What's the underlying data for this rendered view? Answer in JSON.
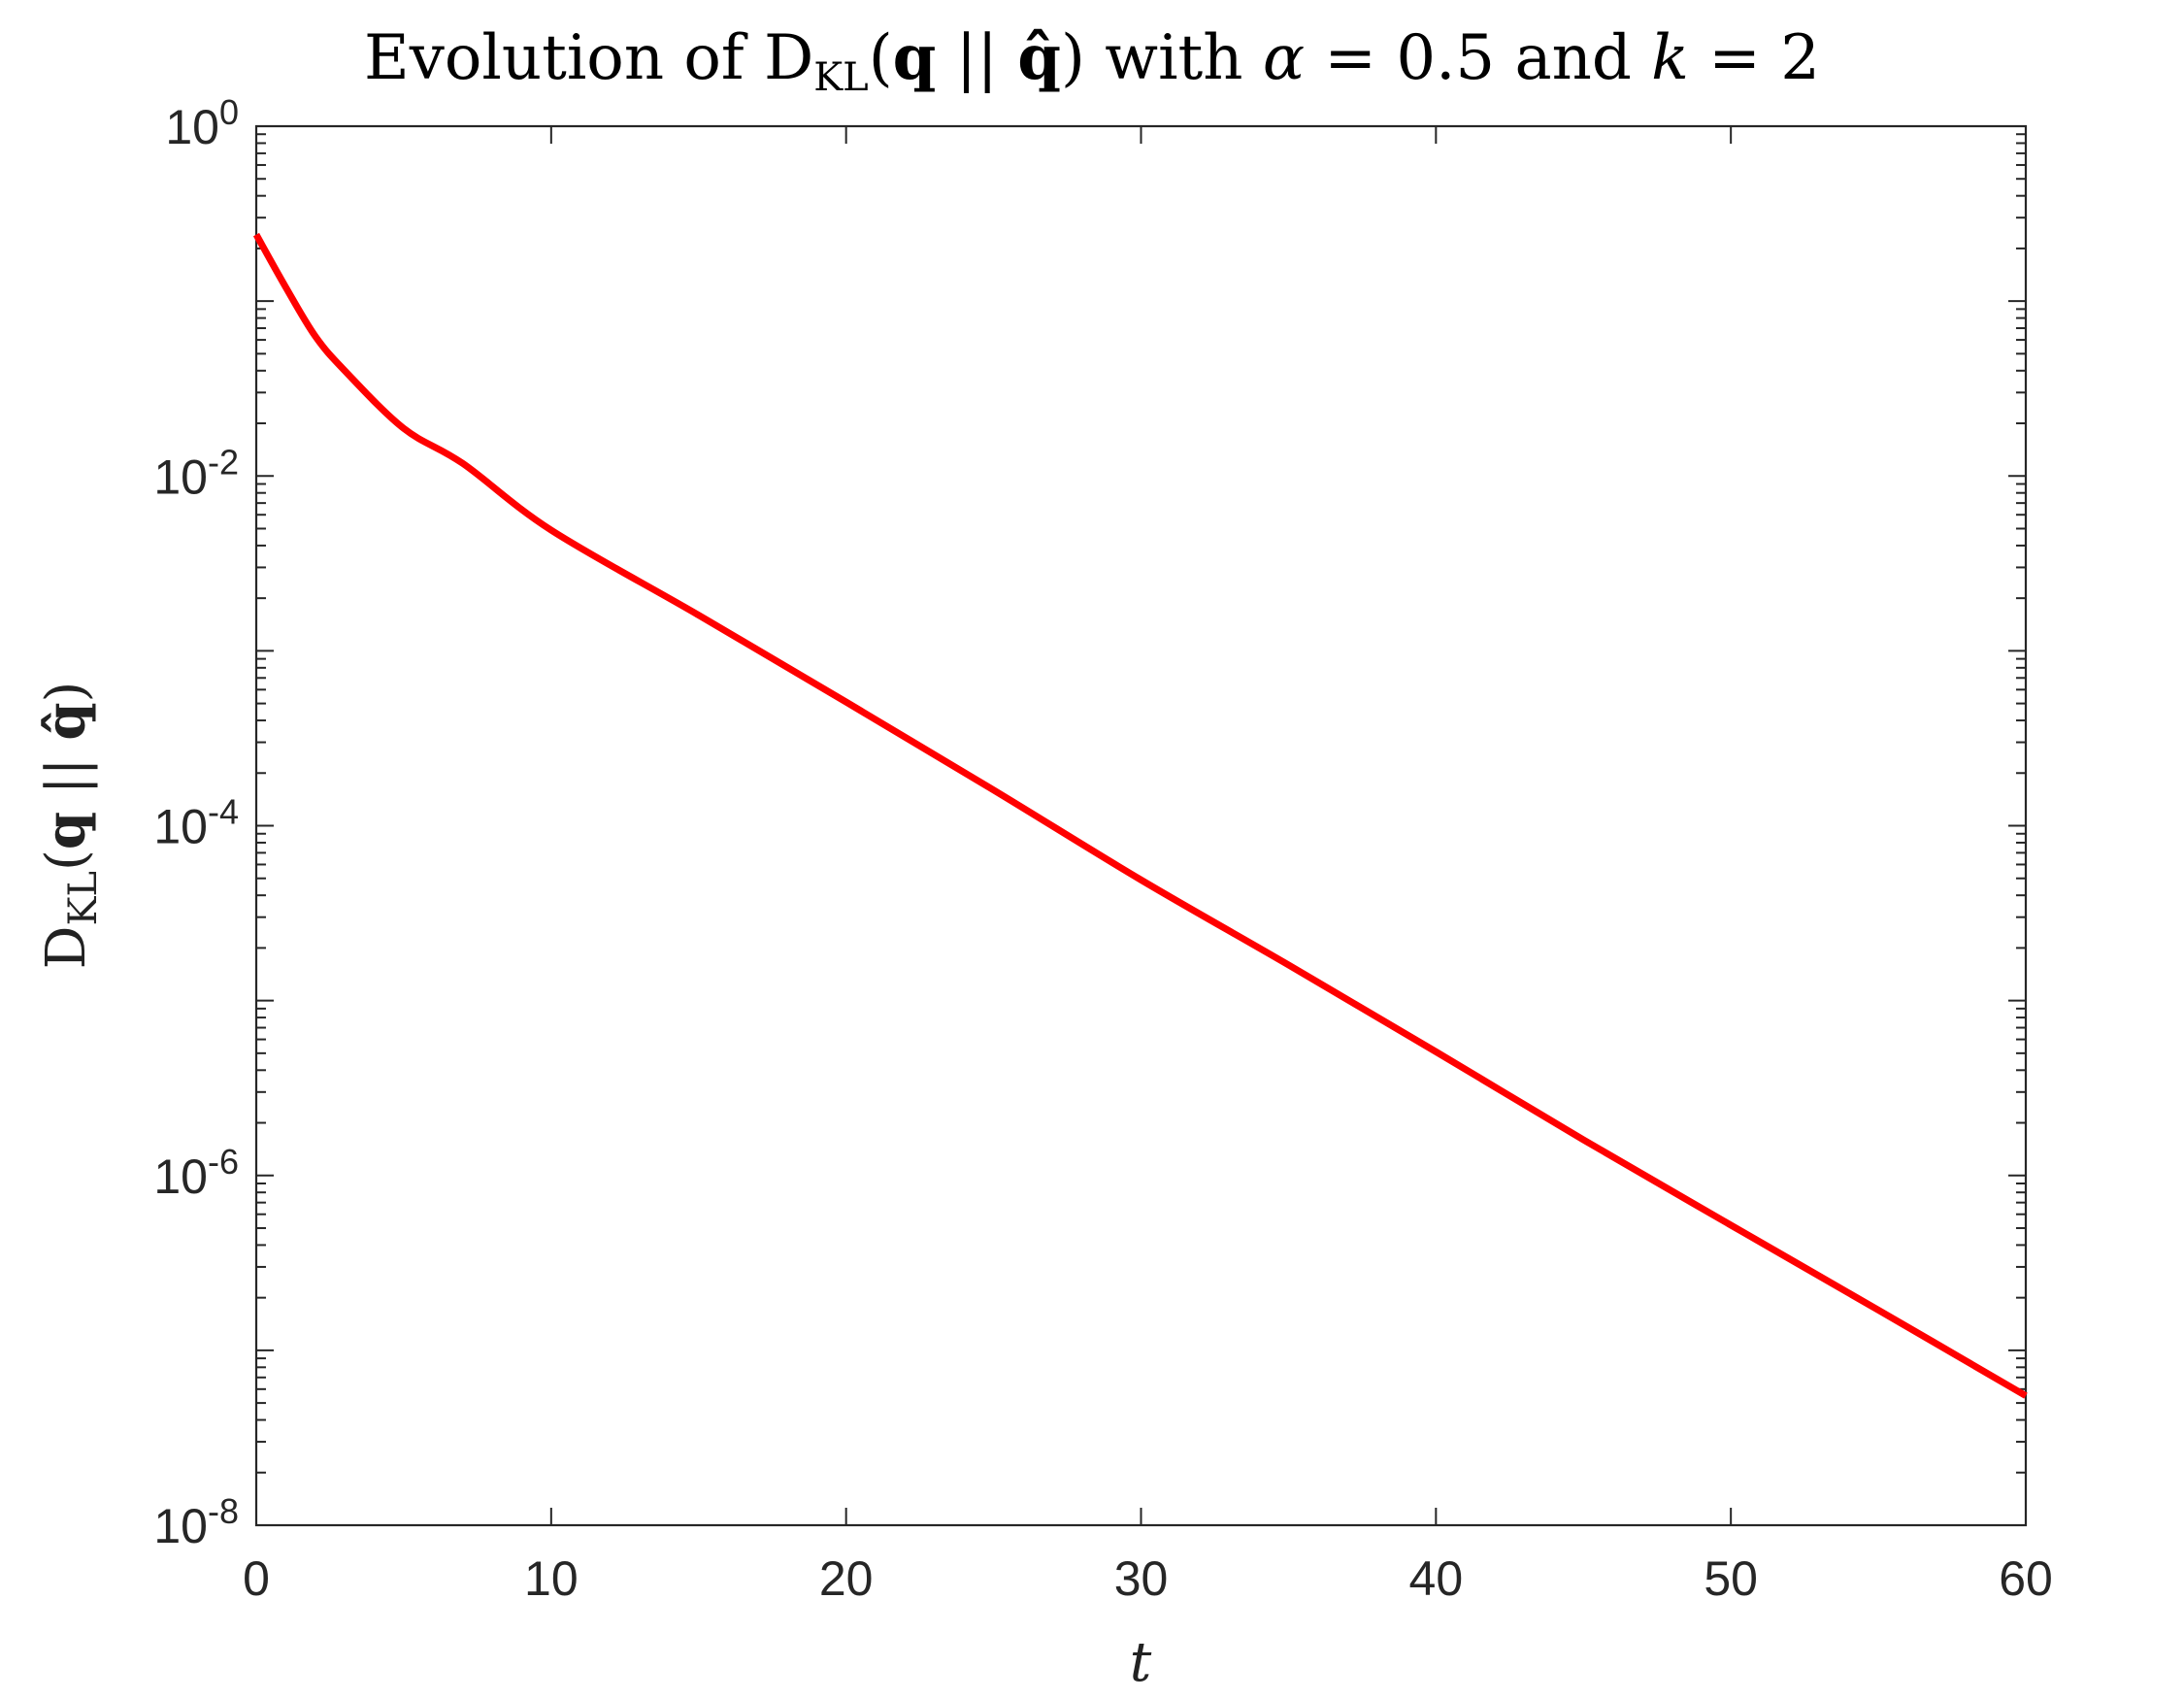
{
  "chart_data": {
    "type": "line",
    "title": {
      "prefix": "Evolution of D",
      "sub": "KL",
      "open": "(",
      "q": "q",
      "sep": " || ",
      "qhat": "q̂",
      "close": ")",
      "with": " with ",
      "alpha": "α",
      "alpha_val": " = 0.5 and ",
      "k": "k",
      "k_val": " = 2"
    },
    "xlabel": "t",
    "ylabel": {
      "main": "D",
      "sub": "KL",
      "open": "(",
      "q": "q",
      "sep": " || ",
      "qhat": "q̂",
      "close": ")"
    },
    "xlim": [
      0,
      60
    ],
    "ylim": [
      1e-08,
      1
    ],
    "yscale": "log",
    "xticks": [
      "0",
      "10",
      "20",
      "30",
      "40",
      "50",
      "60"
    ],
    "yticks": [
      {
        "base": "10",
        "exp": "0"
      },
      {
        "base": "10",
        "exp": "-2"
      },
      {
        "base": "10",
        "exp": "-4"
      },
      {
        "base": "10",
        "exp": "-6"
      },
      {
        "base": "10",
        "exp": "-8"
      }
    ],
    "grid": false,
    "series": [
      {
        "name": "D_KL",
        "color": "#ff0000",
        "x": [
          0,
          1,
          2,
          3,
          5,
          7,
          10,
          15,
          20,
          25,
          30,
          35,
          40,
          45,
          50,
          55,
          60
        ],
        "y": [
          0.24,
          0.12,
          0.063,
          0.04,
          0.0187,
          0.0118,
          0.0049,
          0.0016,
          0.00051,
          0.00016,
          4.9e-05,
          1.6e-05,
          5.1e-06,
          1.6e-06,
          5.2e-07,
          1.7e-07,
          5.5e-08
        ]
      }
    ]
  }
}
